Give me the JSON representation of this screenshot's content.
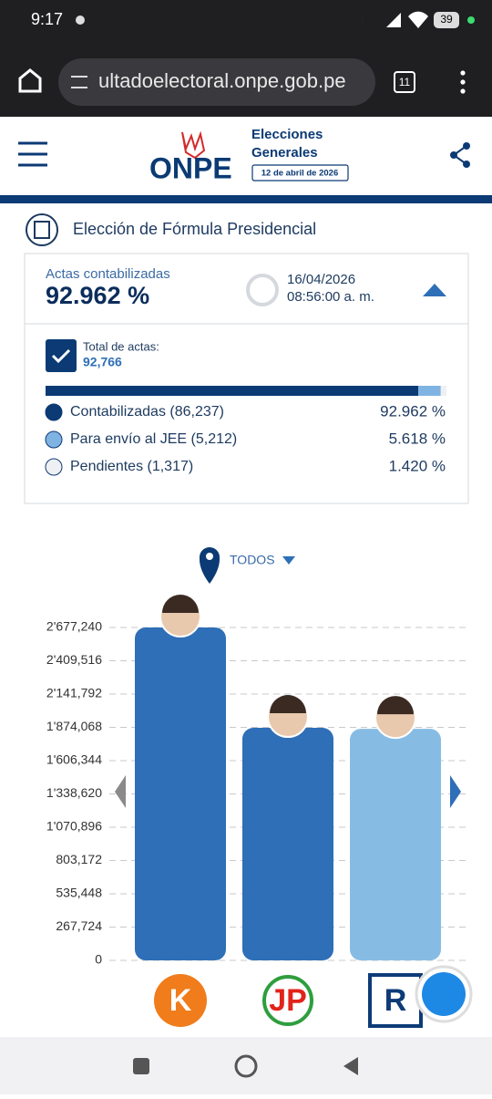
{
  "status_bar": {
    "time": "9:17",
    "battery": 39
  },
  "browser": {
    "url": "ultadoelectoral.onpe.gob.pe",
    "tabs": 11
  },
  "header": {
    "logo": "ONPE",
    "title_line1": "Elecciones",
    "title_line2": "Generales",
    "date": "12 de abril de 2026"
  },
  "section_title": "Elección de Fórmula Presidencial",
  "summary": {
    "label": "Actas contabilizadas",
    "percent": "92.962 %",
    "date": "16/04/2026",
    "time": "08:56:00 a. m.",
    "total_label": "Total de actas:",
    "total": "92,766",
    "items": [
      {
        "name": "Contabilizadas (86,237)",
        "value": 92.962,
        "value_label": "92.962 %",
        "color": "#0b3a74"
      },
      {
        "name": "Para envío al JEE (5,212)",
        "value": 5.618,
        "value_label": "5.618 %",
        "color": "#7fb3e2"
      },
      {
        "name": "Pendientes (1,317)",
        "value": 1.42,
        "value_label": "1.420 %",
        "color": "#eef0f3"
      }
    ]
  },
  "filter": "TODOS",
  "chart_data": {
    "type": "bar",
    "categories": [
      "K",
      "JP",
      "R"
    ],
    "values": [
      2677240,
      1870000,
      1862000
    ],
    "colors": [
      "#2e6fb7",
      "#2e6fb7",
      "#86bce4"
    ],
    "ylim": [
      0,
      2677240
    ],
    "yticks": [
      0,
      {
        "value": 267724,
        "label": "267,724"
      },
      {
        "value": 535448,
        "label": "535,448"
      },
      {
        "value": 803172,
        "label": "803,172"
      },
      {
        "value": 1070896,
        "label": "1'070,896"
      },
      {
        "value": 1338620,
        "label": "1'338,620"
      },
      {
        "value": 1606344,
        "label": "1'606,344"
      },
      {
        "value": 1874068,
        "label": "1'874,068"
      },
      {
        "value": 2141792,
        "label": "2'141,792"
      },
      {
        "value": 2409516,
        "label": "2'409,516"
      },
      {
        "value": 2677240,
        "label": "2'677,240"
      }
    ],
    "grid": true
  }
}
